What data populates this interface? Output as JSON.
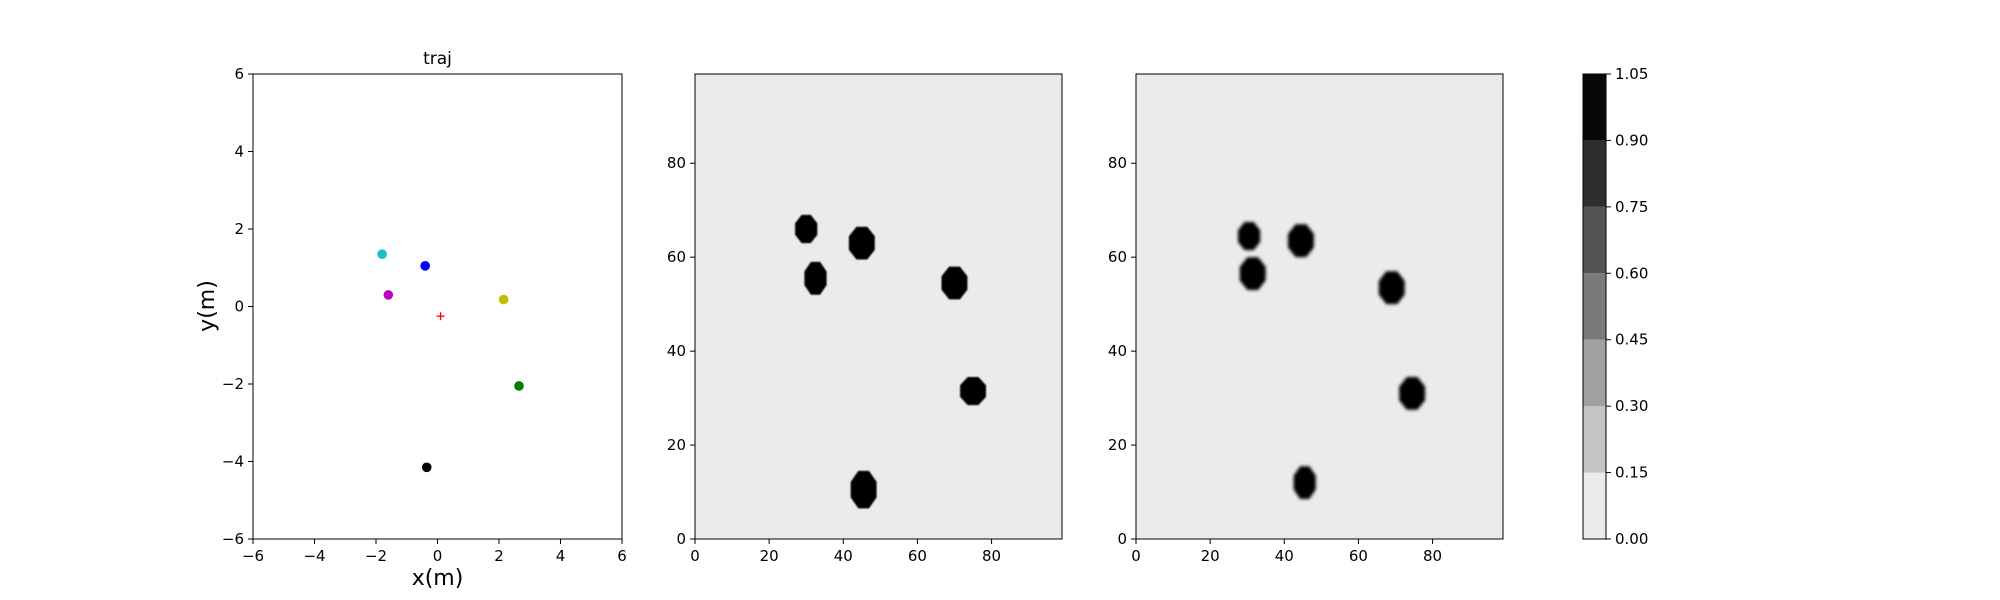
{
  "colors": {
    "background": "#ebebeb",
    "occupied": "#000000",
    "axes": "#000000"
  },
  "chart_data": [
    {
      "type": "scatter",
      "title": "traj",
      "xlabel": "x(m)",
      "ylabel": "y(m)",
      "xlim": [
        -6,
        6
      ],
      "ylim": [
        -6,
        6
      ],
      "xticks": [
        -6,
        -4,
        -2,
        0,
        2,
        4,
        6
      ],
      "yticks": [
        -6,
        -4,
        -2,
        0,
        2,
        4,
        6
      ],
      "tick_labels": {
        "x": [
          "−6",
          "−4",
          "−2",
          "0",
          "2",
          "4",
          "6"
        ],
        "y": [
          "−6",
          "−4",
          "−2",
          "0",
          "2",
          "4",
          "6"
        ]
      },
      "grid": false,
      "points": [
        {
          "x": -1.8,
          "y": 1.35,
          "color": "#1fbfbf",
          "marker": "circle"
        },
        {
          "x": -0.4,
          "y": 1.05,
          "color": "#0000ff",
          "marker": "circle"
        },
        {
          "x": -1.6,
          "y": 0.3,
          "color": "#bf00bf",
          "marker": "circle"
        },
        {
          "x": 2.15,
          "y": 0.18,
          "color": "#bfbf00",
          "marker": "circle"
        },
        {
          "x": 2.65,
          "y": -2.05,
          "color": "#008000",
          "marker": "circle"
        },
        {
          "x": -0.35,
          "y": -4.15,
          "color": "#000000",
          "marker": "circle"
        },
        {
          "x": 0.1,
          "y": -0.25,
          "color": "#ff0000",
          "marker": "plus"
        }
      ]
    },
    {
      "type": "heatmap",
      "xlim": [
        0,
        99
      ],
      "ylim": [
        0,
        99
      ],
      "xticks": [
        0,
        20,
        40,
        60,
        80
      ],
      "yticks": [
        0,
        20,
        40,
        60,
        80
      ],
      "background_value": 0.0,
      "blobs": [
        {
          "cx": 30,
          "cy": 66,
          "rx": 3,
          "ry": 3,
          "value": 1.0
        },
        {
          "cx": 45,
          "cy": 63,
          "rx": 3.5,
          "ry": 3.5,
          "value": 1.0
        },
        {
          "cx": 32.5,
          "cy": 55.5,
          "rx": 3,
          "ry": 3.5,
          "value": 1.0
        },
        {
          "cx": 70,
          "cy": 54.5,
          "rx": 3.5,
          "ry": 3.5,
          "value": 1.0
        },
        {
          "cx": 75,
          "cy": 31.5,
          "rx": 3.5,
          "ry": 3,
          "value": 1.0
        },
        {
          "cx": 45.5,
          "cy": 10.5,
          "rx": 3.5,
          "ry": 4,
          "value": 1.0
        }
      ]
    },
    {
      "type": "heatmap",
      "xlim": [
        0,
        99
      ],
      "ylim": [
        0,
        99
      ],
      "xticks": [
        0,
        20,
        40,
        60,
        80
      ],
      "yticks": [
        0,
        20,
        40,
        60,
        80
      ],
      "background_value": 0.0,
      "blobs": [
        {
          "cx": 30.5,
          "cy": 64.5,
          "rx": 3,
          "ry": 3,
          "value": 1.0
        },
        {
          "cx": 44.5,
          "cy": 63.5,
          "rx": 3.5,
          "ry": 3.5,
          "value": 1.0
        },
        {
          "cx": 31.5,
          "cy": 56.5,
          "rx": 3.5,
          "ry": 3.5,
          "value": 1.0
        },
        {
          "cx": 69,
          "cy": 53.5,
          "rx": 3.5,
          "ry": 3.5,
          "value": 1.0
        },
        {
          "cx": 74.5,
          "cy": 31,
          "rx": 3.5,
          "ry": 3.5,
          "value": 1.0
        },
        {
          "cx": 45.5,
          "cy": 12,
          "rx": 3,
          "ry": 3.5,
          "value": 1.0
        }
      ]
    },
    {
      "type": "colorbar",
      "range": [
        0.0,
        1.05
      ],
      "boundaries": [
        0.0,
        0.15,
        0.3,
        0.45,
        0.6,
        0.75,
        0.9,
        1.05
      ],
      "tick_labels": [
        "0.00",
        "0.15",
        "0.30",
        "0.45",
        "0.60",
        "0.75",
        "0.90",
        "1.05"
      ],
      "level_colors": [
        "#ebebeb",
        "#c4c4c4",
        "#a0a0a0",
        "#7a7a7a",
        "#545454",
        "#2e2e2e",
        "#080808"
      ]
    }
  ]
}
